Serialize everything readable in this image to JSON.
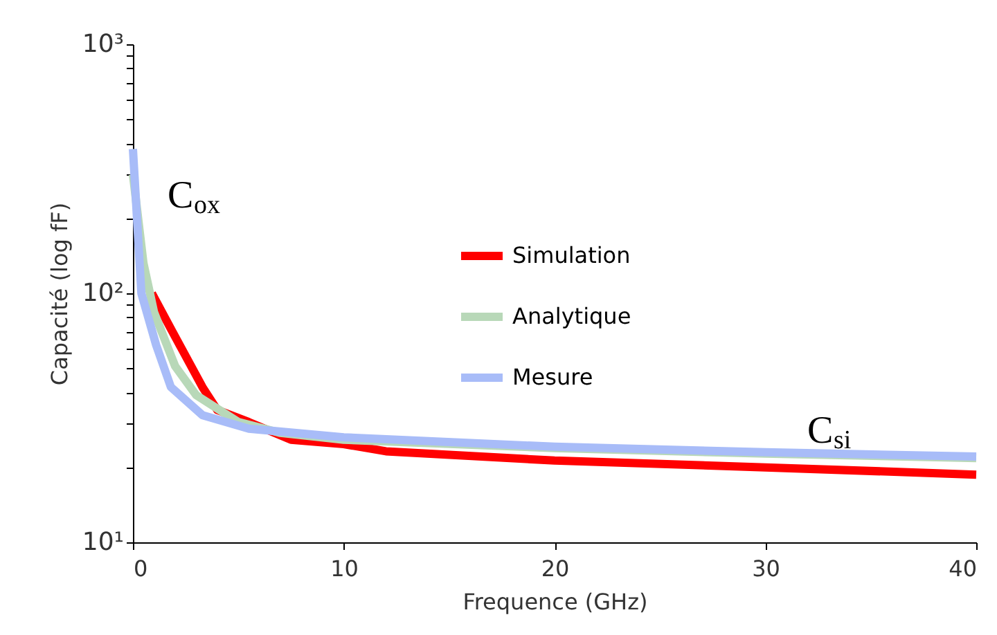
{
  "chart_data": {
    "type": "line",
    "xlabel": "Frequence (GHz)",
    "ylabel": "Capacité (log fF)",
    "log": "y",
    "grid": false,
    "legend": "right",
    "line_style": "solid",
    "marker": "none",
    "xlim": [
      0,
      40
    ],
    "xticks": [
      0,
      10,
      20,
      30,
      40
    ],
    "ylim": [
      10,
      1000
    ],
    "yticks": [
      {
        "value": 10,
        "label": "10¹"
      },
      {
        "value": 20,
        "label": null
      },
      {
        "value": 30,
        "label": null
      },
      {
        "value": 40,
        "label": null
      },
      {
        "value": 50,
        "label": null
      },
      {
        "value": 60,
        "label": null
      },
      {
        "value": 70,
        "label": null
      },
      {
        "value": 80,
        "label": null
      },
      {
        "value": 90,
        "label": null
      },
      {
        "value": 100,
        "label": "10²"
      },
      {
        "value": 200,
        "label": null
      },
      {
        "value": 300,
        "label": null
      },
      {
        "value": 400,
        "label": null
      },
      {
        "value": 500,
        "label": null
      },
      {
        "value": 600,
        "label": null
      },
      {
        "value": 700,
        "label": null
      },
      {
        "value": 800,
        "label": null
      },
      {
        "value": 900,
        "label": null
      },
      {
        "value": 1000,
        "label": "10³"
      }
    ],
    "annotations": [
      "C$_{ox}$",
      "C$_{si}$"
    ],
    "series": [
      {
        "name": "Simulation",
        "color": "#ff0000",
        "x": [
          0.9,
          1.8,
          3.3,
          4,
          5.5,
          7.5,
          10,
          12,
          20,
          30,
          40
        ],
        "values": [
          100,
          72,
          42,
          34,
          30.4,
          25.8,
          24.8,
          23.2,
          21.3,
          20,
          18.7
        ]
      },
      {
        "name": "Analytique",
        "color": "#b8d8b8",
        "x": [
          0,
          0.5,
          1,
          2,
          3,
          5,
          7,
          10,
          20,
          30,
          40
        ],
        "values": [
          300,
          132,
          84,
          51,
          39,
          30.4,
          27.5,
          25.8,
          23.9,
          22.7,
          21.8
        ]
      },
      {
        "name": "Mesure",
        "color": "#a8bcf8",
        "x": [
          0,
          0.4,
          1.1,
          1.8,
          3.3,
          5.5,
          10,
          20,
          30,
          40
        ],
        "values": [
          380,
          100,
          62,
          42,
          32.4,
          28.6,
          26.4,
          24.2,
          23,
          22.1
        ]
      }
    ]
  }
}
